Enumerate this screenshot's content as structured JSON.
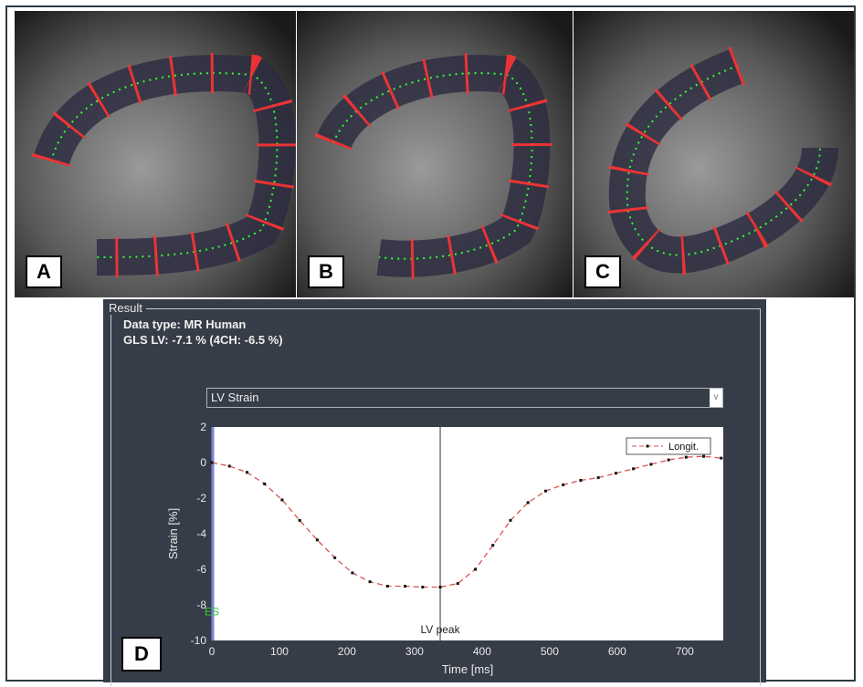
{
  "panels": [
    {
      "label": "A"
    },
    {
      "label": "B"
    },
    {
      "label": "C"
    },
    {
      "label": "D"
    }
  ],
  "result": {
    "group_label": "Result",
    "data_type": "Data type: MR Human",
    "gls": "GLS LV: -7.1 % (4CH: -6.5 %)",
    "dropdown_value": "LV Strain"
  },
  "chart_data": {
    "type": "line",
    "xlabel": "Time [ms]",
    "ylabel": "Strain [%]",
    "xlim": [
      0,
      757
    ],
    "ylim": [
      -10,
      2
    ],
    "xticks": [
      0,
      100,
      200,
      300,
      400,
      500,
      600,
      700
    ],
    "yticks": [
      2,
      0,
      -2,
      -4,
      -6,
      -8,
      -10
    ],
    "grid": false,
    "legend_placement": "top-right",
    "series": [
      {
        "name": "Longit.",
        "color": "#d9534f",
        "style": "dashed with square markers",
        "x": [
          0,
          26,
          52,
          78,
          104,
          130,
          156,
          182,
          208,
          234,
          260,
          286,
          312,
          338,
          364,
          390,
          416,
          442,
          468,
          494,
          520,
          546,
          572,
          598,
          624,
          650,
          676,
          702,
          728,
          754
        ],
        "y": [
          0,
          -0.2,
          -0.55,
          -1.2,
          -2.1,
          -3.25,
          -4.35,
          -5.35,
          -6.2,
          -6.7,
          -6.95,
          -6.95,
          -7.0,
          -7.0,
          -6.8,
          -6.0,
          -4.65,
          -3.25,
          -2.25,
          -1.6,
          -1.25,
          -1.0,
          -0.85,
          -0.6,
          -0.35,
          -0.1,
          0.15,
          0.3,
          0.35,
          0.25
        ]
      }
    ],
    "annotations": [
      {
        "text": "LV peak",
        "x": 338,
        "type": "vertical-line",
        "color": "#333333"
      },
      {
        "text": "ES",
        "x": 0,
        "type": "vertical-line",
        "color": "#7b86d6",
        "text_color": "#33cc33"
      }
    ]
  }
}
